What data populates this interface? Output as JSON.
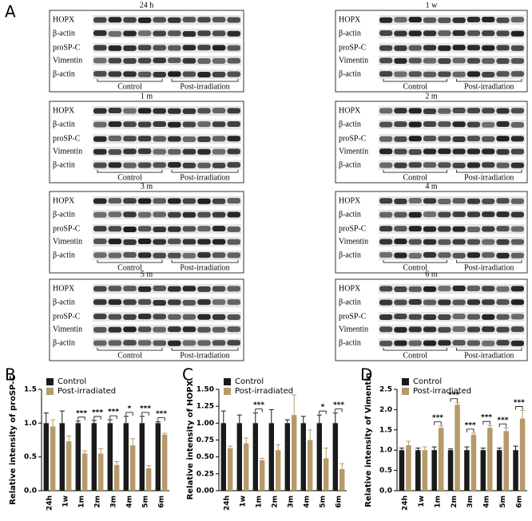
{
  "panel_a": {
    "label": "A",
    "blots": [
      {
        "title": "24 h",
        "rows": [
          "HOPX",
          "β-actin",
          "proSP-C",
          "Vimentin",
          "β-actin"
        ],
        "groups": [
          "Control",
          "Post-irradiation"
        ]
      },
      {
        "title": "1 w",
        "rows": [
          "HOPX",
          "β-actin",
          "proSP-C",
          "Vimentin",
          "β-actin"
        ],
        "groups": [
          "Control",
          "Post-irradiation"
        ]
      },
      {
        "title": "1 m",
        "rows": [
          "HOPX",
          "β-actin",
          "proSP-C",
          "Vimentin",
          "β-actin"
        ],
        "groups": [
          "Control",
          "Post-irradiation"
        ]
      },
      {
        "title": "2 m",
        "rows": [
          "HOPX",
          "β-actin",
          "proSP-C",
          "Vimentin",
          "β-actin"
        ],
        "groups": [
          "Control",
          "Post-irradiation"
        ]
      },
      {
        "title": "3 m",
        "rows": [
          "HOPX",
          "β-actin",
          "proSP-C",
          "Vimentin",
          "β-actin"
        ],
        "groups": [
          "Control",
          "Post-irradiation"
        ]
      },
      {
        "title": "4 m",
        "rows": [
          "HOPX",
          "β-actin",
          "proSP-C",
          "Vimentin",
          "β-actin"
        ],
        "groups": [
          "Control",
          "Post-irradiation"
        ]
      },
      {
        "title": "5 m",
        "rows": [
          "HOPX",
          "β-actin",
          "proSP-C",
          "Vimentin",
          "β-actin"
        ],
        "groups": [
          "Control",
          "Post-irradiation"
        ]
      },
      {
        "title": "6 m",
        "rows": [
          "HOPX",
          "β-actin",
          "proSP-C",
          "Vimentin",
          "β-actin"
        ],
        "groups": [
          "Control",
          "Post-irradiation"
        ]
      }
    ]
  },
  "chart_data": [
    {
      "type": "bar",
      "label": "B",
      "ylabel": "Relative intensity of proSP-C",
      "categories": [
        "24h",
        "1w",
        "1m",
        "2m",
        "3m",
        "4m",
        "5m",
        "6m"
      ],
      "series": [
        {
          "name": "Control",
          "color": "#1a1a1a",
          "values": [
            1.0,
            1.0,
            1.0,
            1.0,
            1.0,
            1.0,
            1.0,
            1.0
          ],
          "errors": [
            0.15,
            0.18,
            0.03,
            0.04,
            0.05,
            0.1,
            0.1,
            0.02
          ]
        },
        {
          "name": "Post-irradiated",
          "color": "#b59a6a",
          "values": [
            0.95,
            0.73,
            0.55,
            0.55,
            0.38,
            0.67,
            0.33,
            0.83
          ],
          "errors": [
            0.1,
            0.08,
            0.04,
            0.07,
            0.05,
            0.1,
            0.04,
            0.02
          ]
        }
      ],
      "significance": [
        null,
        null,
        "***",
        "***",
        "***",
        "*",
        "***",
        "***"
      ],
      "ylim": [
        0,
        1.5
      ],
      "yticks": [
        {
          "value": 0,
          "label": "0.0"
        },
        {
          "value": 0.5,
          "label": "0.5"
        },
        {
          "value": 1,
          "label": "1.0"
        },
        {
          "value": 1.5,
          "label": "1.5"
        }
      ]
    },
    {
      "type": "bar",
      "label": "C",
      "ylabel": "Relative intensity of HOPX",
      "categories": [
        "24h",
        "1w",
        "1m",
        "2m",
        "3m",
        "4m",
        "5m",
        "6m"
      ],
      "series": [
        {
          "name": "Control",
          "color": "#1a1a1a",
          "values": [
            1.0,
            1.0,
            1.0,
            1.0,
            1.0,
            1.0,
            1.0,
            1.0
          ],
          "errors": [
            0.18,
            0.12,
            0.15,
            0.2,
            0.05,
            0.1,
            0.12,
            0.15
          ]
        },
        {
          "name": "Post-irradiated",
          "color": "#b59a6a",
          "values": [
            0.63,
            0.7,
            0.45,
            0.6,
            1.12,
            0.75,
            0.48,
            0.32
          ],
          "errors": [
            0.03,
            0.08,
            0.03,
            0.08,
            0.3,
            0.15,
            0.15,
            0.08
          ]
        }
      ],
      "significance": [
        null,
        null,
        "***",
        null,
        null,
        null,
        "*",
        "***"
      ],
      "ylim": [
        0,
        1.5
      ],
      "yticks": [
        {
          "value": 0,
          "label": "0.00"
        },
        {
          "value": 0.25,
          "label": "0.25"
        },
        {
          "value": 0.5,
          "label": "0.50"
        },
        {
          "value": 0.75,
          "label": "0.75"
        },
        {
          "value": 1,
          "label": "1.00"
        },
        {
          "value": 1.25,
          "label": "1.25"
        },
        {
          "value": 1.5,
          "label": "1.50"
        }
      ]
    },
    {
      "type": "bar",
      "label": "D",
      "ylabel": "Relative intensity of Vimentin",
      "categories": [
        "24h",
        "1w",
        "1m",
        "2m",
        "3m",
        "4m",
        "5m",
        "6m"
      ],
      "series": [
        {
          "name": "Control",
          "color": "#1a1a1a",
          "values": [
            1.0,
            1.0,
            1.0,
            1.0,
            1.0,
            1.0,
            1.0,
            1.0
          ],
          "errors": [
            0.05,
            0.05,
            0.08,
            0.03,
            0.08,
            0.05,
            0.05,
            0.1
          ]
        },
        {
          "name": "Post-irradiated",
          "color": "#b59a6a",
          "values": [
            1.12,
            1.0,
            1.55,
            2.12,
            1.38,
            1.55,
            1.47,
            1.78
          ],
          "errors": [
            0.1,
            0.08,
            0.05,
            0.05,
            0.04,
            0.06,
            0.08,
            0.2
          ]
        }
      ],
      "significance": [
        null,
        null,
        "***",
        "***",
        "***",
        "***",
        "***",
        "***"
      ],
      "ylim": [
        0,
        2.5
      ],
      "yticks": [
        {
          "value": 0,
          "label": "0.0"
        },
        {
          "value": 0.5,
          "label": "0.5"
        },
        {
          "value": 1,
          "label": "1.0"
        },
        {
          "value": 1.5,
          "label": "1.5"
        },
        {
          "value": 2,
          "label": "2.0"
        },
        {
          "value": 2.5,
          "label": "2.5"
        }
      ]
    }
  ]
}
